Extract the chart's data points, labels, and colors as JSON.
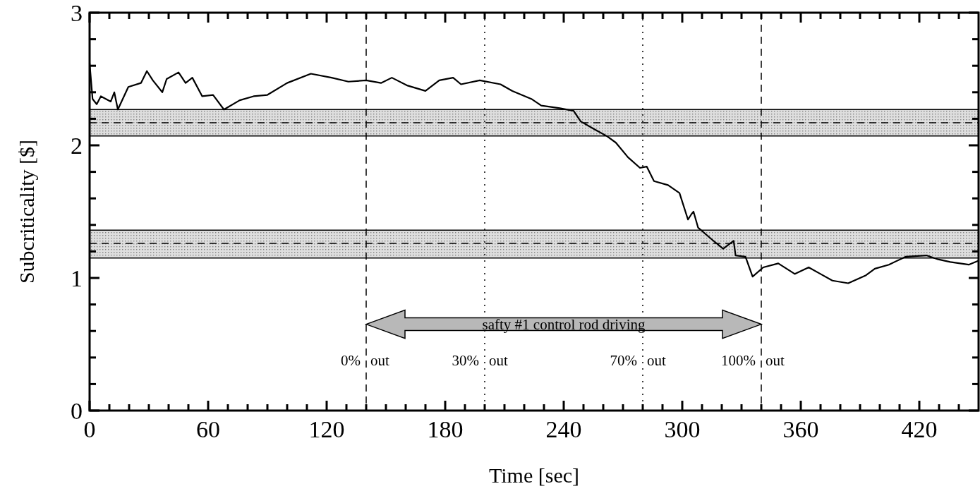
{
  "chart_data": {
    "type": "line",
    "xlabel": "Time [sec]",
    "ylabel": "Subcriticality [$]",
    "xlim": [
      0,
      450
    ],
    "ylim": [
      0,
      3
    ],
    "xticks": [
      0,
      {
        "value": 10,
        "label": null
      },
      {
        "value": 20,
        "label": null
      },
      {
        "value": 30,
        "label": null
      },
      {
        "value": 40,
        "label": null
      },
      {
        "value": 50,
        "label": null
      },
      60,
      {
        "value": 70,
        "label": null
      },
      {
        "value": 80,
        "label": null
      },
      {
        "value": 90,
        "label": null
      },
      {
        "value": 100,
        "label": null
      },
      {
        "value": 110,
        "label": null
      },
      120,
      {
        "value": 130,
        "label": null
      },
      {
        "value": 140,
        "label": null
      },
      {
        "value": 150,
        "label": null
      },
      {
        "value": 160,
        "label": null
      },
      {
        "value": 170,
        "label": null
      },
      180,
      {
        "value": 190,
        "label": null
      },
      {
        "value": 200,
        "label": null
      },
      {
        "value": 210,
        "label": null
      },
      {
        "value": 220,
        "label": null
      },
      {
        "value": 230,
        "label": null
      },
      240,
      {
        "value": 250,
        "label": null
      },
      {
        "value": 260,
        "label": null
      },
      {
        "value": 270,
        "label": null
      },
      {
        "value": 280,
        "label": null
      },
      {
        "value": 290,
        "label": null
      },
      300,
      {
        "value": 310,
        "label": null
      },
      {
        "value": 320,
        "label": null
      },
      {
        "value": 330,
        "label": null
      },
      {
        "value": 340,
        "label": null
      },
      {
        "value": 350,
        "label": null
      },
      360,
      {
        "value": 370,
        "label": null
      },
      {
        "value": 380,
        "label": null
      },
      {
        "value": 390,
        "label": null
      },
      {
        "value": 400,
        "label": null
      },
      {
        "value": 410,
        "label": null
      },
      420,
      {
        "value": 430,
        "label": null
      },
      {
        "value": 440,
        "label": null
      }
    ],
    "yticks": [
      0,
      {
        "value": 0.2,
        "label": null
      },
      {
        "value": 0.4,
        "label": null
      },
      {
        "value": 0.6,
        "label": null
      },
      {
        "value": 0.8,
        "label": null
      },
      1,
      {
        "value": 1.2,
        "label": null
      },
      {
        "value": 1.4,
        "label": null
      },
      {
        "value": 1.6,
        "label": null
      },
      {
        "value": 1.8,
        "label": null
      },
      2,
      {
        "value": 2.2,
        "label": null
      },
      {
        "value": 2.4,
        "label": null
      },
      {
        "value": 2.6,
        "label": null
      },
      {
        "value": 2.8,
        "label": null
      },
      3
    ],
    "marker": "none",
    "line_style": "solid",
    "series": [
      {
        "color": "#000000",
        "x": [
          0,
          1.5,
          3.6,
          5.7,
          10.7,
          12.5,
          14.3,
          19.6,
          26,
          29,
          32,
          36.8,
          39,
          45,
          48.6,
          52,
          57,
          62.5,
          68,
          76,
          83,
          90,
          100,
          112,
          122.5,
          131,
          140,
          147.5,
          153,
          161,
          170,
          177,
          184,
          188,
          197.5,
          208,
          214,
          223.6,
          228.6,
          238,
          245,
          248.6,
          255.7,
          261.8,
          266.4,
          272.5,
          278.6,
          282,
          285.7,
          292.8,
          298.6,
          302.9,
          304.6,
          305.7,
          308,
          315,
          320.7,
          326,
          327,
          332,
          335.6,
          341,
          348.6,
          357,
          364,
          370,
          376,
          384,
          393,
          397.5,
          404.6,
          413,
          423.6,
          429.6,
          435.7,
          445,
          450
        ],
        "values": [
          2.62,
          2.35,
          2.31,
          2.37,
          2.33,
          2.4,
          2.27,
          2.44,
          2.47,
          2.56,
          2.49,
          2.4,
          2.5,
          2.55,
          2.47,
          2.51,
          2.37,
          2.38,
          2.27,
          2.34,
          2.37,
          2.38,
          2.47,
          2.54,
          2.51,
          2.48,
          2.49,
          2.47,
          2.51,
          2.45,
          2.41,
          2.49,
          2.51,
          2.46,
          2.49,
          2.46,
          2.41,
          2.35,
          2.3,
          2.28,
          2.26,
          2.18,
          2.12,
          2.07,
          2.02,
          1.91,
          1.83,
          1.84,
          1.73,
          1.7,
          1.64,
          1.44,
          1.48,
          1.5,
          1.38,
          1.29,
          1.22,
          1.28,
          1.17,
          1.16,
          1.01,
          1.08,
          1.11,
          1.03,
          1.08,
          1.03,
          0.98,
          0.96,
          1.02,
          1.07,
          1.1,
          1.16,
          1.17,
          1.14,
          1.12,
          1.1,
          1.13
        ]
      }
    ],
    "bands": [
      {
        "axis": "y",
        "from": 2.07,
        "to": 2.27,
        "color": "#c8c8c8"
      },
      {
        "axis": "y",
        "from": 1.15,
        "to": 1.36,
        "color": "#c8c8c8"
      }
    ],
    "ref_lines": [
      {
        "axis": "y",
        "value": 2.17,
        "line_style": "dashed",
        "color": "#000000"
      },
      {
        "axis": "y",
        "value": 1.26,
        "line_style": "dashed",
        "color": "#000000"
      },
      {
        "axis": "x",
        "value": 140,
        "line_style": "dashed",
        "color": "#000000"
      },
      {
        "axis": "x",
        "value": 200,
        "line_style": "dotted",
        "color": "#000000"
      },
      {
        "axis": "x",
        "value": 280,
        "line_style": "dotted",
        "color": "#000000"
      },
      {
        "axis": "x",
        "value": 340,
        "line_style": "dashed",
        "color": "#000000"
      }
    ],
    "annotations": [
      "safty #1 control rod driving",
      {
        "text": "0% out",
        "x": 140,
        "y": 0.38
      },
      {
        "text": "30% out",
        "x": 200,
        "y": 0.38
      },
      {
        "text": "70% out",
        "x": 280,
        "y": 0.38
      },
      {
        "text": "100% out",
        "x": 340,
        "y": 0.38
      }
    ]
  }
}
